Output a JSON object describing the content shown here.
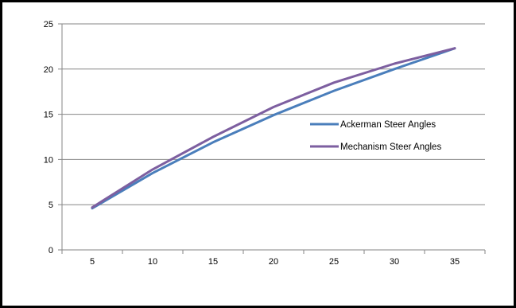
{
  "chart_data": {
    "type": "line",
    "x": [
      5,
      10,
      15,
      20,
      25,
      30,
      35
    ],
    "categories": [
      "5",
      "10",
      "15",
      "20",
      "25",
      "30",
      "35"
    ],
    "series": [
      {
        "name": "Ackerman Steer Angles",
        "values": [
          4.6,
          8.5,
          11.9,
          14.9,
          17.6,
          20.0,
          22.3
        ],
        "color": "#4a7ebb"
      },
      {
        "name": "Mechanism Steer Angles",
        "values": [
          4.7,
          8.9,
          12.5,
          15.8,
          18.5,
          20.6,
          22.3
        ],
        "color": "#7d5fa0"
      }
    ],
    "yticks": [
      "0",
      "5",
      "10",
      "15",
      "20",
      "25"
    ],
    "ylim": [
      0,
      25
    ],
    "grid": "horizontal",
    "legend_position": "right-middle",
    "gridline_color": "#868686",
    "axis_color": "#868686"
  }
}
